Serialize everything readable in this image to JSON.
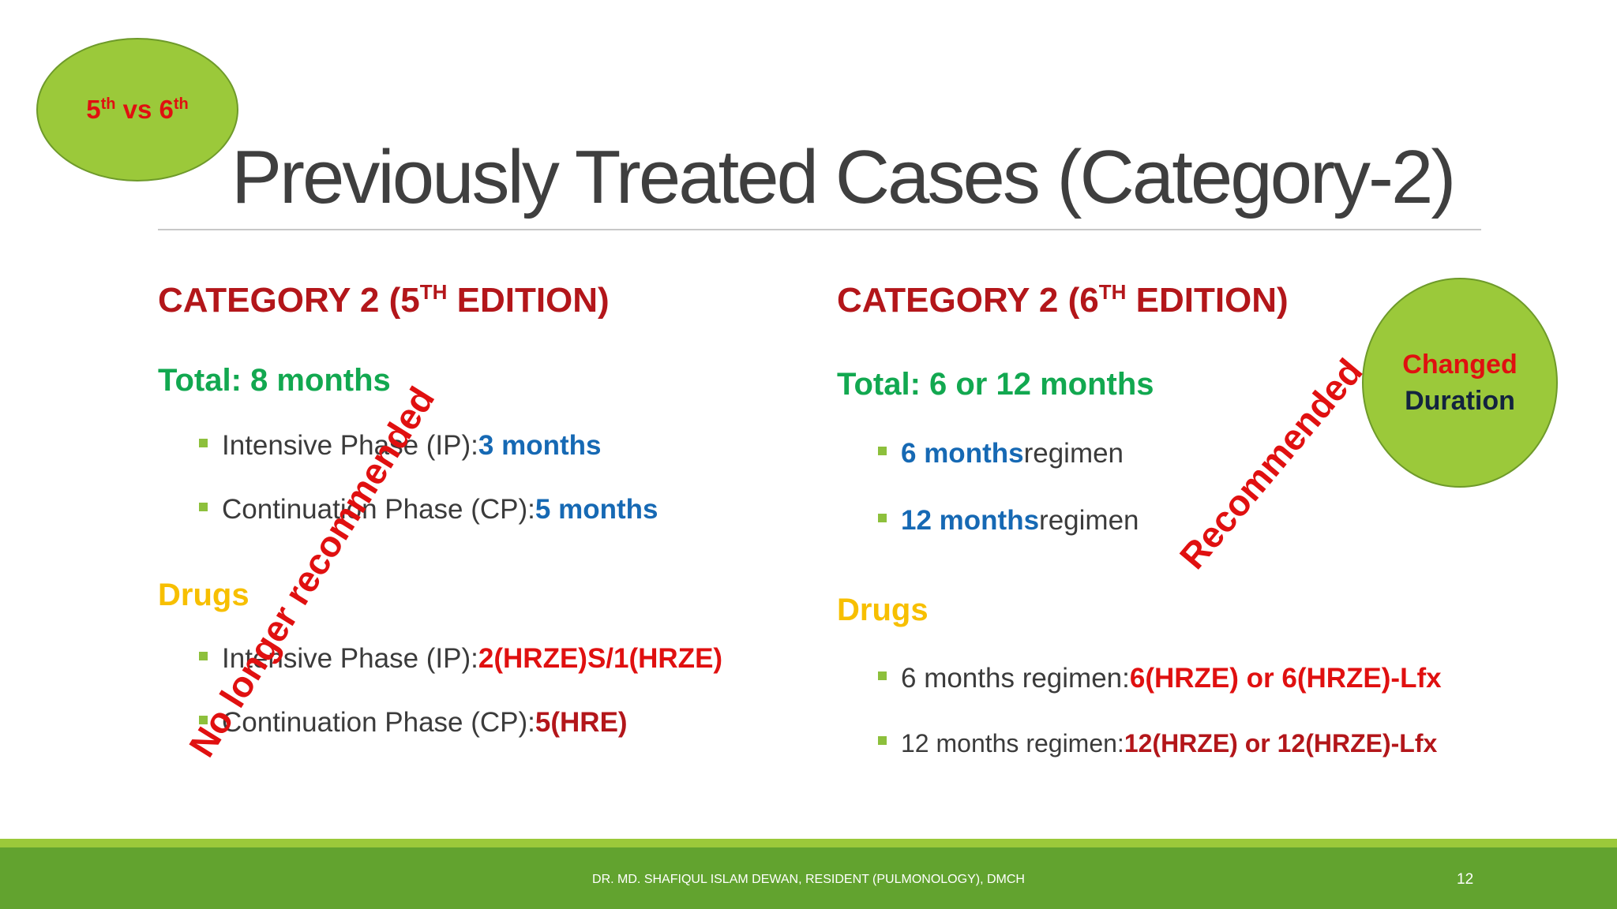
{
  "badge": {
    "num1": "5",
    "sup1": "th",
    "vs": " vs ",
    "num2": "6",
    "sup2": "th"
  },
  "title": "Previously Treated Cases (Category-2)",
  "left": {
    "heading_pre": "CATEGORY 2 (5",
    "heading_sup": "TH",
    "heading_post": " EDITION)",
    "total": "Total: 8 months",
    "phases": [
      {
        "label": "Intensive Phase (IP): ",
        "value": "3 months"
      },
      {
        "label": "Continuation Phase (CP): ",
        "value": "5 months"
      }
    ],
    "drugs_label": "Drugs",
    "drugs": [
      {
        "label": "Intensive Phase (IP): ",
        "value": "2(HRZE)S/1(HRZE)"
      },
      {
        "label": "Continuation Phase (CP): ",
        "value": "5(HRE)"
      }
    ],
    "stamp": "No longer recommended"
  },
  "right": {
    "heading_pre": "CATEGORY 2 (6",
    "heading_sup": "TH",
    "heading_post": " EDITION)",
    "total": "Total: 6 or 12 months",
    "regimens": [
      {
        "value": "6 months",
        "label": " regimen"
      },
      {
        "value": "12 months",
        "label": " regimen"
      }
    ],
    "drugs_label": "Drugs",
    "drugs": [
      {
        "label": "6 months regimen: ",
        "value": "6(HRZE) or 6(HRZE)-Lfx"
      },
      {
        "label": "12 months regimen: ",
        "value": "12(HRZE) or 12(HRZE)-Lfx"
      }
    ],
    "stamp": "Recommended"
  },
  "changed_badge": {
    "line1": "Changed",
    "line2": "Duration"
  },
  "footer": {
    "text": "DR. MD. SHAFIQUL ISLAM DEWAN, RESIDENT (PULMONOLOGY), DMCH",
    "page": "12"
  },
  "colors": {
    "badge_green": "#9bc93a",
    "footer_green": "#62a32f",
    "heading_red": "#b3161a",
    "total_green": "#12a850",
    "drugs_yellow": "#f7bf00",
    "value_blue": "#1669b4",
    "value_red": "#e01010"
  }
}
